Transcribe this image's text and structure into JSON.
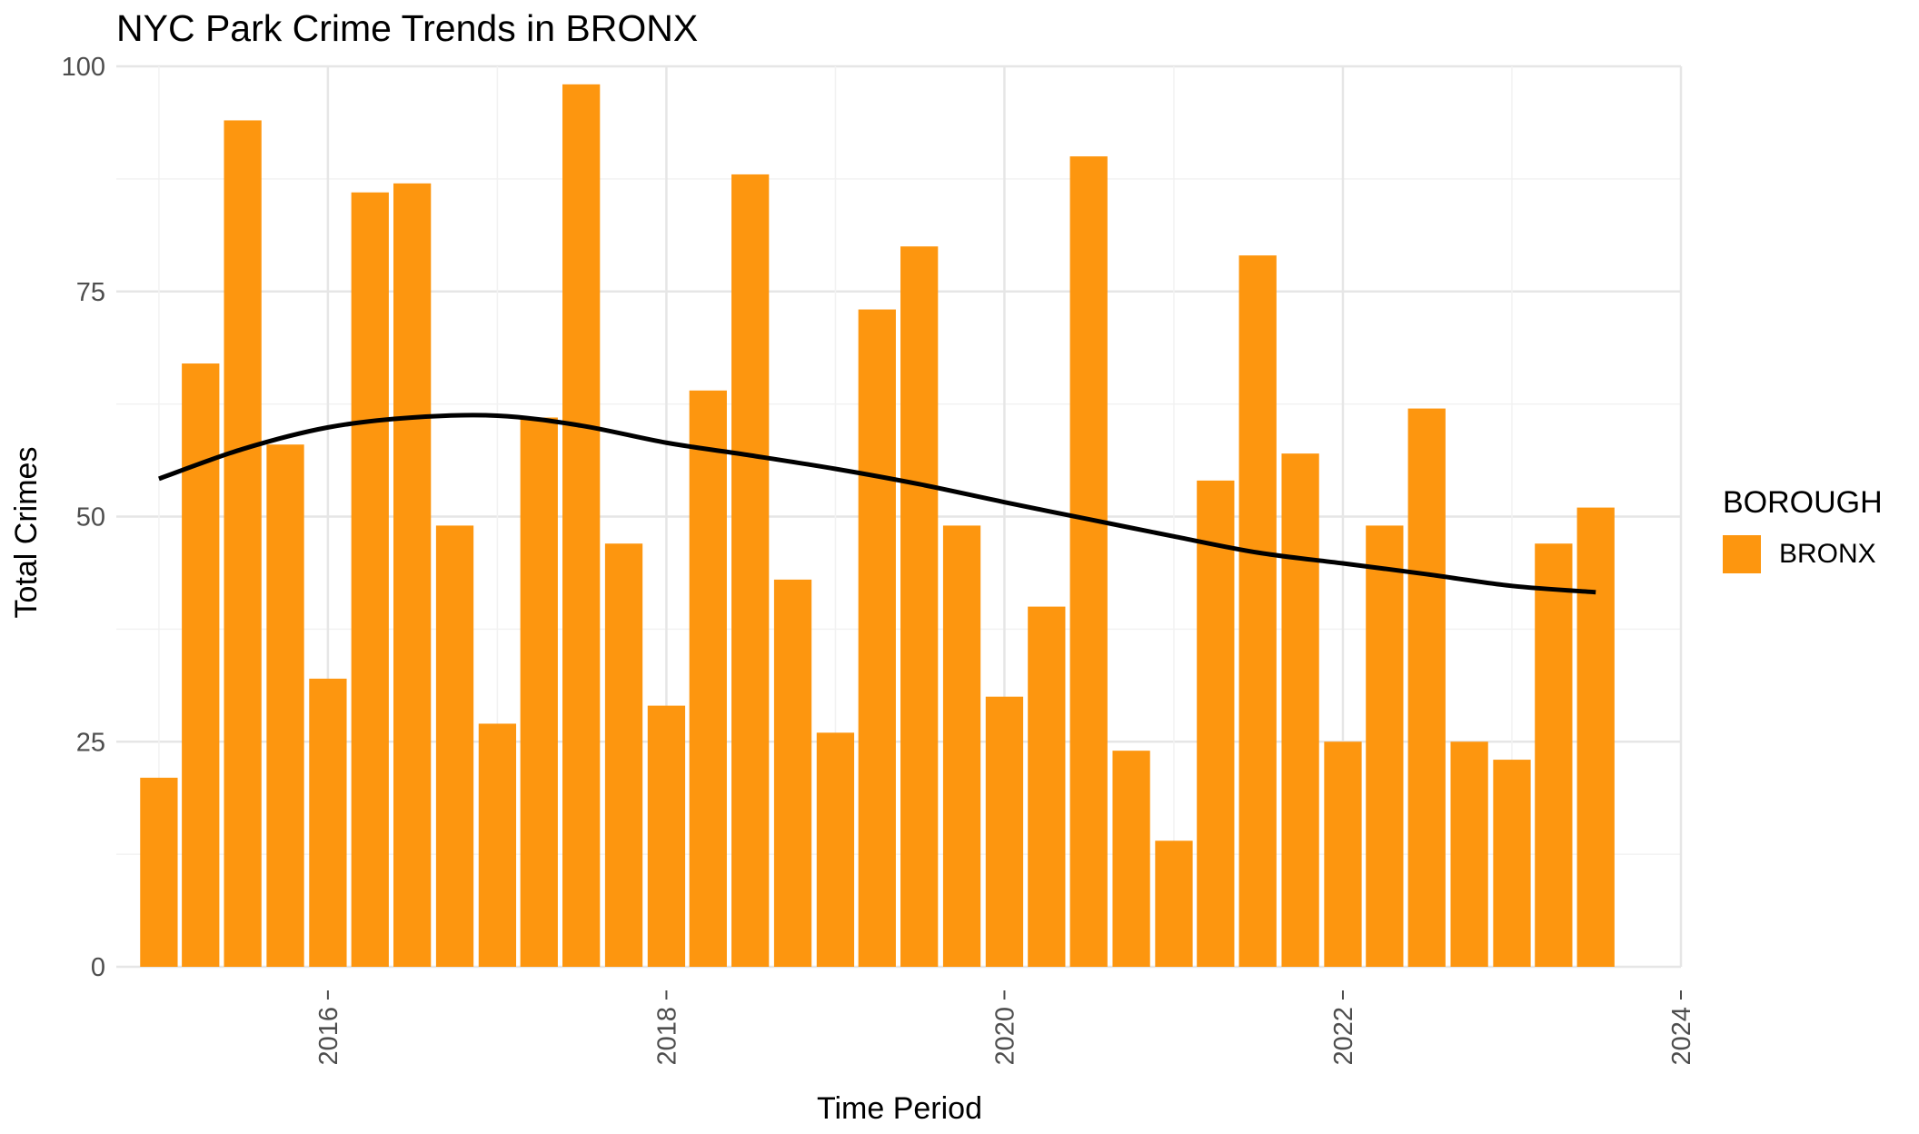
{
  "colors": {
    "bar": "#fd960f",
    "trend": "#000000",
    "grid_major": "#e6e6e6",
    "grid_minor": "#f2f2f2",
    "background": "#ffffff"
  },
  "legend": {
    "title": "BOROUGH",
    "item": "BRONX",
    "placement": "right"
  },
  "chart_data": {
    "type": "bar",
    "title": "NYC Park Crime Trends in BRONX",
    "xlabel": "Time Period",
    "ylabel": "Total Crimes",
    "x_ticks": [
      "2016",
      "2018",
      "2020",
      "2022",
      "2024"
    ],
    "y_ticks": [
      "0",
      "25",
      "50",
      "75",
      "100"
    ],
    "xlim": [
      "2014-10-01",
      "2024-01-01"
    ],
    "ylim": [
      0,
      100
    ],
    "grid": true,
    "categories": [
      "2015-Q1",
      "2015-Q2",
      "2015-Q3",
      "2015-Q4",
      "2016-Q1",
      "2016-Q2",
      "2016-Q3",
      "2016-Q4",
      "2017-Q1",
      "2017-Q2",
      "2017-Q3",
      "2017-Q4",
      "2018-Q1",
      "2018-Q2",
      "2018-Q3",
      "2018-Q4",
      "2019-Q1",
      "2019-Q2",
      "2019-Q3",
      "2019-Q4",
      "2020-Q1",
      "2020-Q2",
      "2020-Q3",
      "2020-Q4",
      "2021-Q1",
      "2021-Q2",
      "2021-Q3",
      "2021-Q4",
      "2022-Q1",
      "2022-Q2",
      "2022-Q3",
      "2022-Q4",
      "2023-Q1",
      "2023-Q2",
      "2023-Q3"
    ],
    "x_dates": [
      "2015-01-01",
      "2015-04-01",
      "2015-07-01",
      "2015-10-01",
      "2016-01-01",
      "2016-04-01",
      "2016-07-01",
      "2016-10-01",
      "2017-01-01",
      "2017-04-01",
      "2017-07-01",
      "2017-10-01",
      "2018-01-01",
      "2018-04-01",
      "2018-07-01",
      "2018-10-01",
      "2019-01-01",
      "2019-04-01",
      "2019-07-01",
      "2019-10-01",
      "2020-01-01",
      "2020-04-01",
      "2020-07-01",
      "2020-10-01",
      "2021-01-01",
      "2021-04-01",
      "2021-07-01",
      "2021-10-01",
      "2022-01-01",
      "2022-04-01",
      "2022-07-01",
      "2022-10-01",
      "2023-01-01",
      "2023-04-01",
      "2023-07-01"
    ],
    "series": [
      {
        "name": "BRONX",
        "type": "bar",
        "values": [
          21,
          67,
          94,
          58,
          32,
          86,
          87,
          49,
          27,
          61,
          98,
          47,
          29,
          64,
          88,
          43,
          26,
          73,
          80,
          49,
          30,
          40,
          90,
          24,
          14,
          54,
          79,
          57,
          25,
          49,
          62,
          25,
          23,
          47,
          51
        ]
      }
    ],
    "trend_line": {
      "type": "smooth",
      "x": [
        "2015-01-01",
        "2015-07-01",
        "2016-01-01",
        "2016-07-01",
        "2017-01-01",
        "2017-07-01",
        "2018-01-01",
        "2018-07-01",
        "2019-01-01",
        "2019-07-01",
        "2020-01-01",
        "2020-07-01",
        "2021-01-01",
        "2021-07-01",
        "2022-01-01",
        "2022-07-01",
        "2023-01-01",
        "2023-07-01"
      ],
      "y": [
        54.2,
        57.5,
        59.9,
        61.0,
        61.2,
        60.1,
        58.2,
        56.8,
        55.3,
        53.6,
        51.6,
        49.7,
        47.8,
        46.0,
        44.8,
        43.6,
        42.3,
        41.6
      ]
    }
  }
}
